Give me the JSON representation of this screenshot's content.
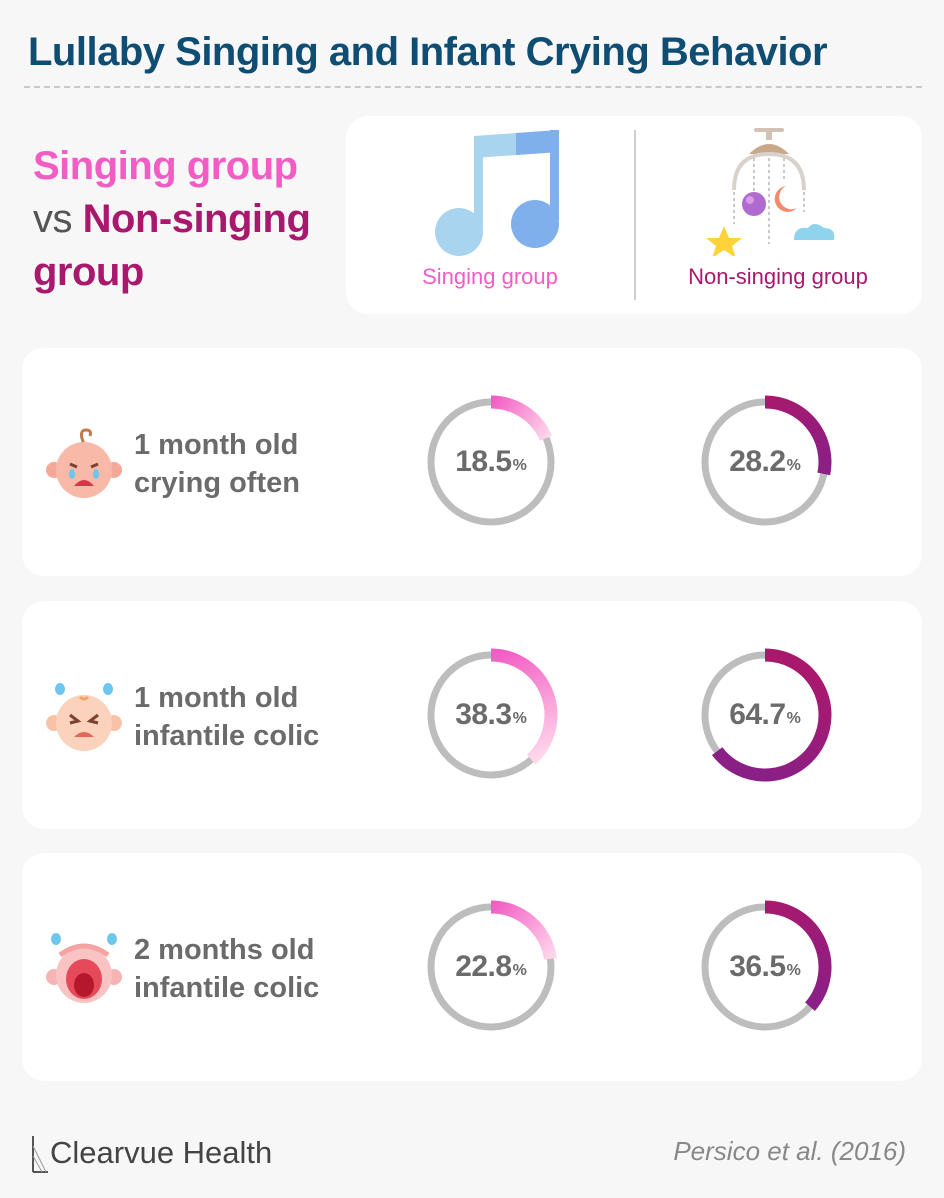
{
  "title": "Lullaby Singing and Infant Crying Behavior",
  "heading": {
    "part1": "Singing group",
    "vs": "vs",
    "part2": "Non-singing group"
  },
  "legend": {
    "singing_label": "Singing group",
    "non_singing_label": "Non-singing group",
    "singing_icon": "music-note-icon",
    "non_singing_icon": "baby-mobile-icon"
  },
  "colors": {
    "singing": "#f25cc4",
    "non_singing": "#a8196e",
    "ring_track": "#bdbdbd",
    "title": "#0f4d73"
  },
  "chart_data": {
    "type": "donut",
    "unit": "%",
    "series": [
      {
        "name": "Singing group",
        "values": [
          18.5,
          38.3,
          22.8
        ]
      },
      {
        "name": "Non-singing group",
        "values": [
          28.2,
          64.7,
          36.5
        ]
      }
    ],
    "categories": [
      "1 month old crying often",
      "1 month old infantile colic",
      "2 months old infantile colic"
    ]
  },
  "rows": [
    {
      "label_line1": "1 month old",
      "label_line2": "crying often",
      "icon": "crying-baby-icon",
      "singing": "18.5",
      "non_singing": "28.2"
    },
    {
      "label_line1": "1 month old",
      "label_line2": "infantile colic",
      "icon": "upset-baby-icon",
      "singing": "38.3",
      "non_singing": "64.7"
    },
    {
      "label_line1": "2 months old",
      "label_line2": "infantile colic",
      "icon": "screaming-baby-icon",
      "singing": "22.8",
      "non_singing": "36.5"
    }
  ],
  "percent_sign": "%",
  "footer": {
    "brand": "Clearvue Health",
    "source": "Persico et al. (2016)"
  }
}
